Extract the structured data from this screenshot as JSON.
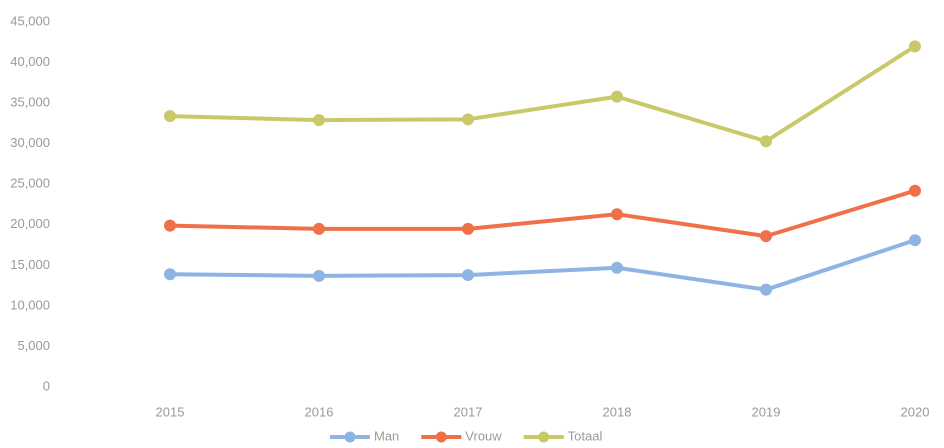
{
  "chart_data": {
    "type": "line",
    "categories": [
      "2015",
      "2016",
      "2017",
      "2018",
      "2019",
      "2020"
    ],
    "series": [
      {
        "name": "Man",
        "color": "#8fb4e3",
        "values": [
          13900,
          13700,
          13800,
          14700,
          12000,
          18100
        ]
      },
      {
        "name": "Vrouw",
        "color": "#f0704a",
        "values": [
          19900,
          19500,
          19500,
          21300,
          18600,
          24200
        ]
      },
      {
        "name": "Totaal",
        "color": "#c9c96a",
        "values": [
          33400,
          32900,
          33000,
          35800,
          30300,
          42000
        ]
      }
    ],
    "ylim": [
      0,
      45000
    ],
    "yticks": [
      0,
      {
        "value": 5000,
        "label": "5,000"
      },
      {
        "value": 10000,
        "label": "10,000"
      },
      {
        "value": 15000,
        "label": "15,000"
      },
      {
        "value": 20000,
        "label": "20,000"
      },
      {
        "value": 25000,
        "label": "25,000"
      },
      {
        "value": 30000,
        "label": "30,000"
      },
      {
        "value": 35000,
        "label": "35,000"
      },
      {
        "value": 40000,
        "label": "40,000"
      },
      {
        "value": 45000,
        "label": "45,000"
      }
    ],
    "grid": false,
    "legend": "bottom"
  }
}
